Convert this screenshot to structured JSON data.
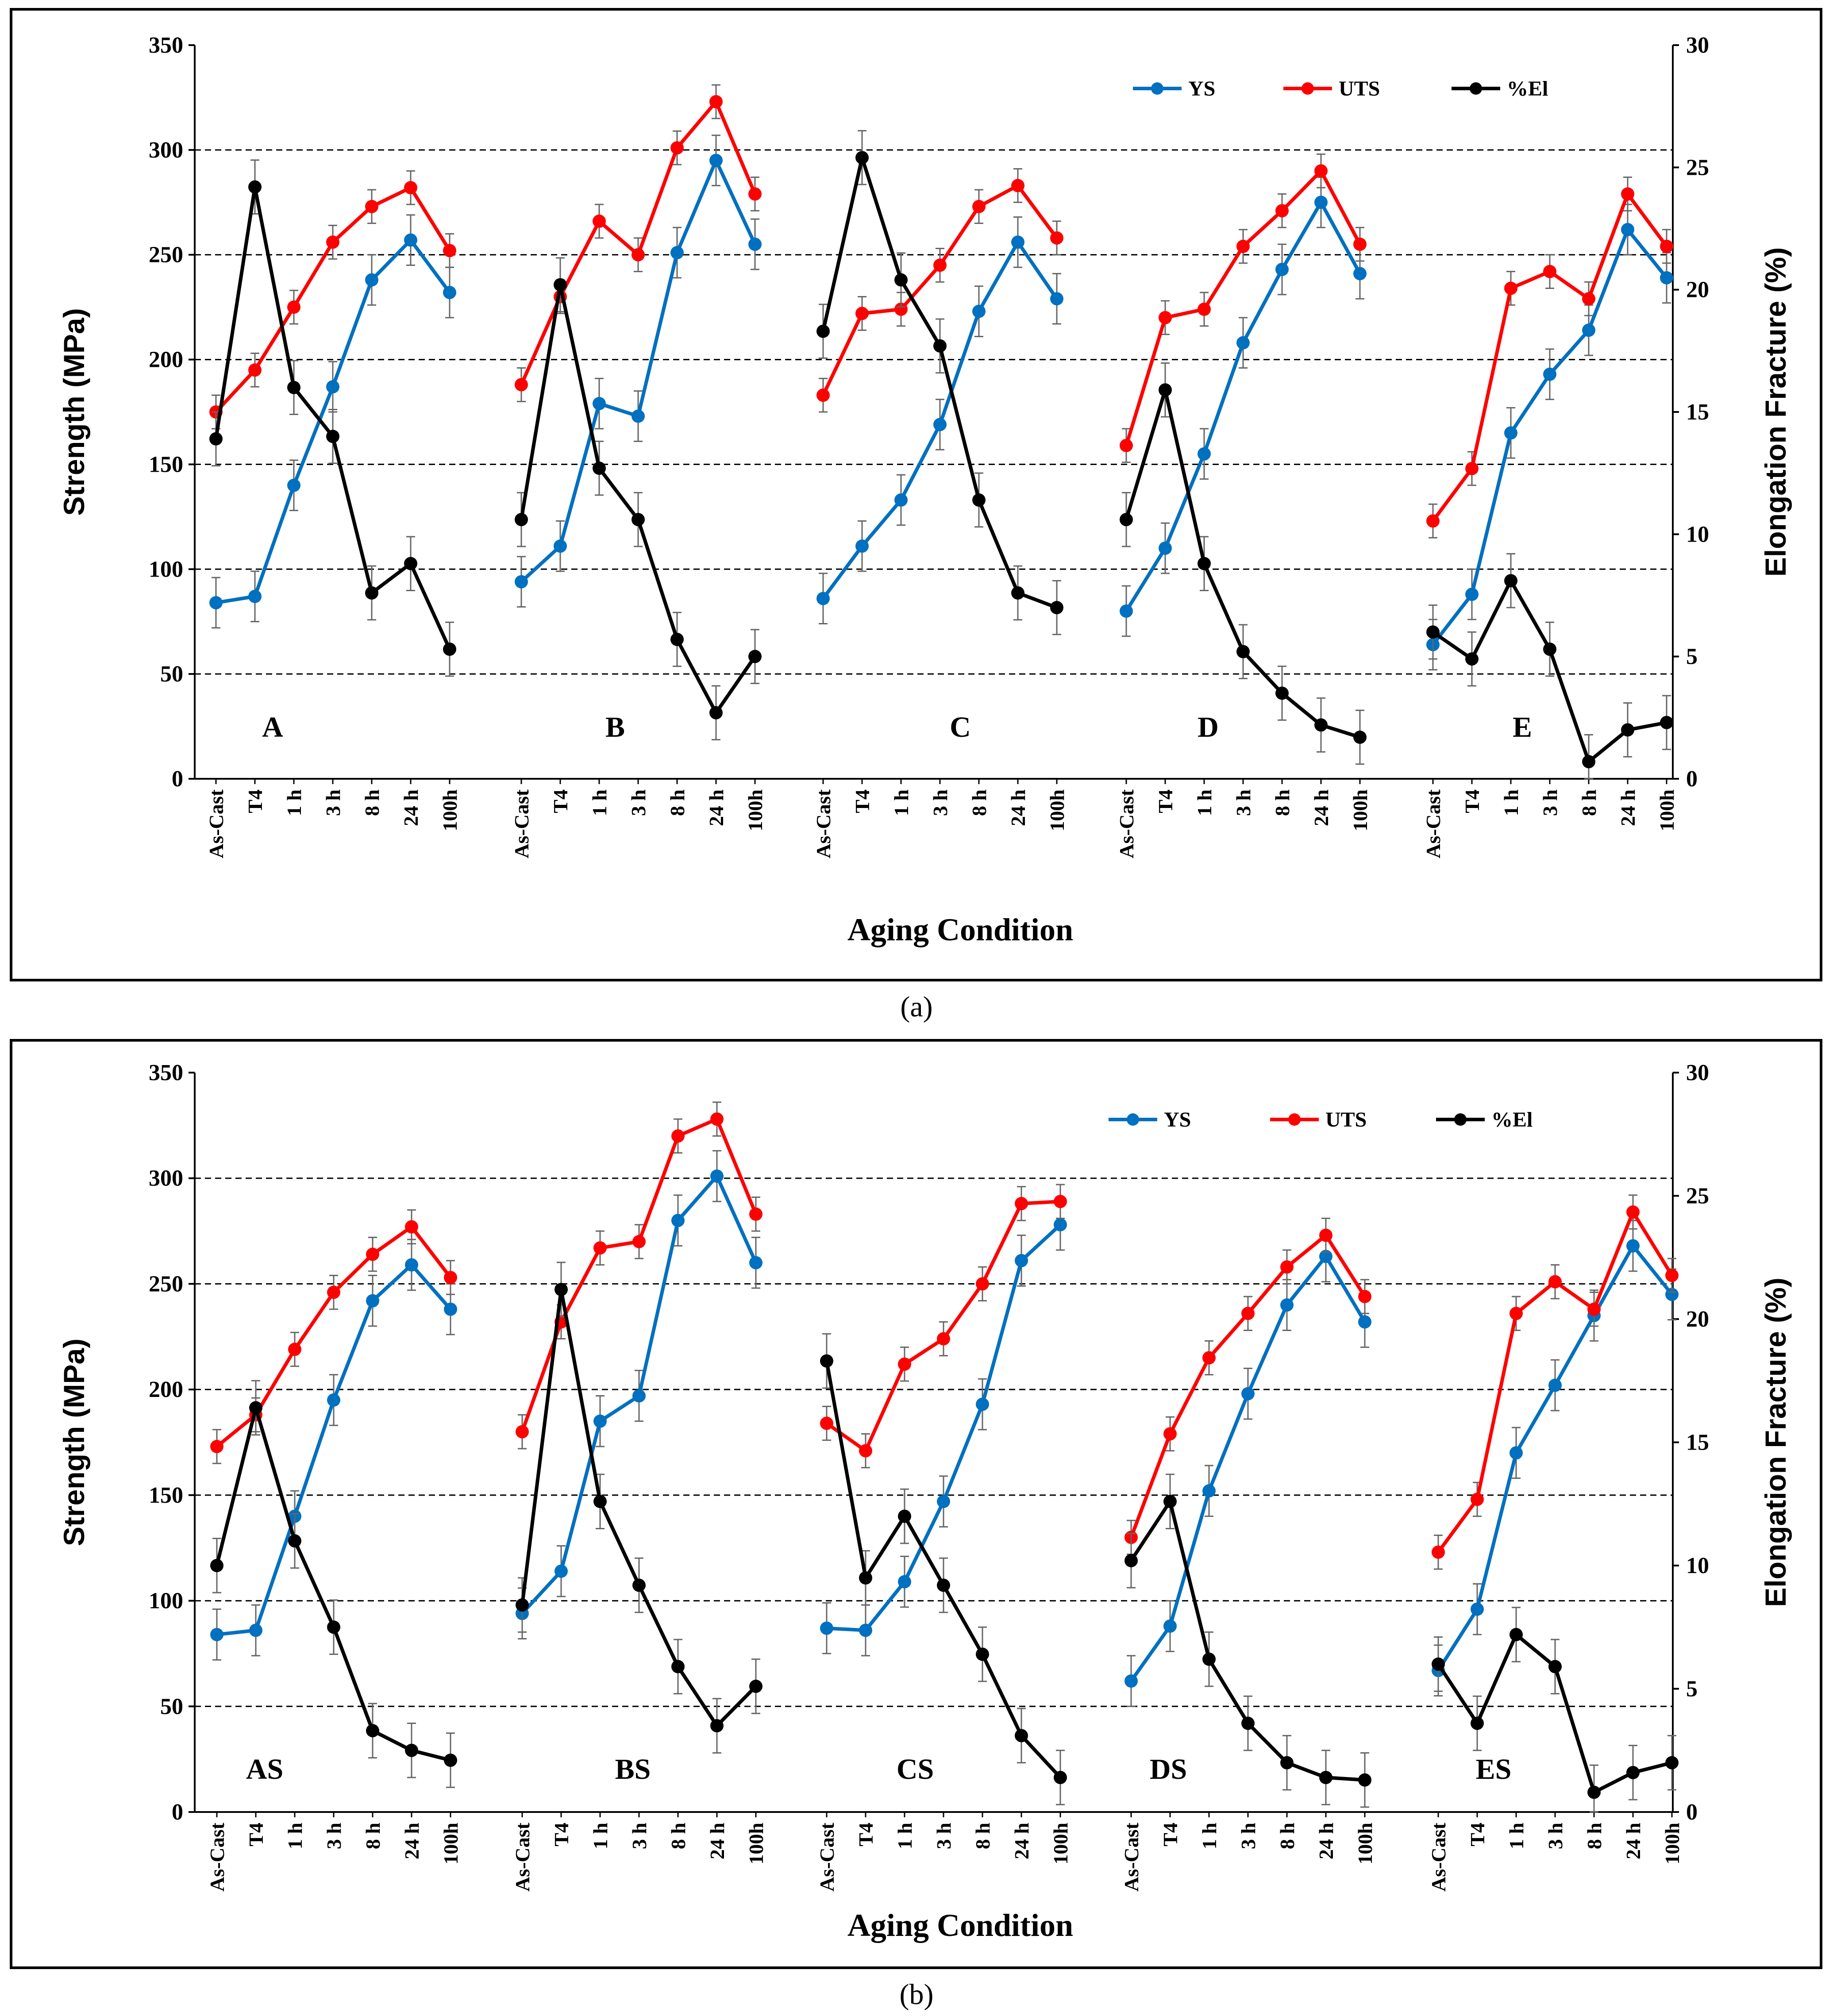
{
  "captions": {
    "a": "(a)",
    "b": "(b)"
  },
  "colors": {
    "ys": "#0070c0",
    "uts": "#ff0000",
    "el": "#000000"
  },
  "chart_data": [
    {
      "id": "a",
      "type": "line",
      "xlabel": "Aging Condition",
      "ylabel": "Strength (MPa)",
      "y2label": "Elongation Fracture (%)",
      "ylim": [
        0,
        350
      ],
      "y2lim": [
        0,
        30
      ],
      "yticks": [
        "0",
        "50",
        "100",
        "150",
        "200",
        "250",
        "300",
        "350"
      ],
      "y2ticks": [
        "0",
        "5",
        "10",
        "15",
        "20",
        "25",
        "30"
      ],
      "grid": "horizontal dashed",
      "legend_position": "top-right",
      "legend": [
        "YS",
        "UTS",
        "%El"
      ],
      "categories": [
        "As-Cast",
        "T4",
        "1 h",
        "3 h",
        "8 h",
        "24 h",
        "100h"
      ],
      "groups": [
        {
          "name": "A",
          "ys": [
            84,
            87,
            140,
            187,
            238,
            257,
            232
          ],
          "uts": [
            175,
            195,
            225,
            256,
            273,
            282,
            252
          ],
          "el": [
            13.9,
            24.2,
            16.0,
            14.0,
            7.6,
            8.8,
            5.3
          ]
        },
        {
          "name": "B",
          "ys": [
            94,
            111,
            179,
            173,
            251,
            295,
            255
          ],
          "uts": [
            188,
            230,
            266,
            250,
            301,
            323,
            279
          ],
          "el": [
            10.6,
            20.2,
            12.7,
            10.6,
            5.7,
            2.7,
            5.0
          ]
        },
        {
          "name": "C",
          "ys": [
            86,
            111,
            133,
            169,
            223,
            256,
            229
          ],
          "uts": [
            183,
            222,
            224,
            245,
            273,
            283,
            258
          ],
          "el": [
            18.3,
            25.4,
            20.4,
            17.7,
            11.4,
            7.6,
            7.0
          ]
        },
        {
          "name": "D",
          "ys": [
            80,
            110,
            155,
            208,
            243,
            275,
            241
          ],
          "uts": [
            159,
            220,
            224,
            254,
            271,
            290,
            255
          ],
          "el": [
            10.6,
            15.9,
            8.8,
            5.2,
            3.5,
            2.2,
            1.7
          ]
        },
        {
          "name": "E",
          "ys": [
            64,
            88,
            165,
            193,
            214,
            262,
            239
          ],
          "uts": [
            123,
            148,
            234,
            242,
            229,
            279,
            254
          ],
          "el": [
            6.0,
            4.9,
            8.1,
            5.3,
            0.7,
            2.0,
            2.3
          ]
        }
      ]
    },
    {
      "id": "b",
      "type": "line",
      "xlabel": "Aging Condition",
      "ylabel": "Strength (MPa)",
      "y2label": "Elongation Fracture (%)",
      "ylim": [
        0,
        350
      ],
      "y2lim": [
        0,
        30
      ],
      "yticks": [
        "0",
        "50",
        "100",
        "150",
        "200",
        "250",
        "300",
        "350"
      ],
      "y2ticks": [
        "0",
        "5",
        "10",
        "15",
        "20",
        "25",
        "30"
      ],
      "grid": "horizontal dashed",
      "legend_position": "top-right",
      "legend": [
        "YS",
        "UTS",
        "%El"
      ],
      "categories": [
        "As-Cast",
        "T4",
        "1 h",
        "3 h",
        "8 h",
        "24 h",
        "100h"
      ],
      "groups": [
        {
          "name": "AS",
          "ys": [
            84,
            86,
            140,
            195,
            242,
            259,
            238
          ],
          "uts": [
            173,
            188,
            219,
            246,
            264,
            277,
            253
          ],
          "el": [
            10.0,
            16.4,
            11.0,
            7.5,
            3.3,
            2.5,
            2.1
          ]
        },
        {
          "name": "BS",
          "ys": [
            94,
            114,
            185,
            197,
            280,
            301,
            260
          ],
          "uts": [
            180,
            232,
            267,
            270,
            320,
            328,
            283
          ],
          "el": [
            8.4,
            21.2,
            12.6,
            9.2,
            5.9,
            3.5,
            5.1
          ]
        },
        {
          "name": "CS",
          "ys": [
            87,
            86,
            109,
            147,
            193,
            261,
            278
          ],
          "uts": [
            184,
            171,
            212,
            224,
            250,
            288,
            289
          ],
          "el": [
            18.3,
            9.5,
            12.0,
            9.2,
            6.4,
            3.1,
            1.4
          ]
        },
        {
          "name": "DS",
          "ys": [
            62,
            88,
            152,
            198,
            240,
            263,
            232
          ],
          "uts": [
            130,
            179,
            215,
            236,
            258,
            273,
            244
          ],
          "el": [
            10.2,
            12.6,
            6.2,
            3.6,
            2.0,
            1.4,
            1.3
          ]
        },
        {
          "name": "ES",
          "ys": [
            67,
            96,
            170,
            202,
            235,
            268,
            245
          ],
          "uts": [
            123,
            148,
            236,
            251,
            238,
            284,
            254
          ],
          "el": [
            6.0,
            3.6,
            7.2,
            5.9,
            0.8,
            1.6,
            2.0
          ]
        }
      ]
    }
  ]
}
